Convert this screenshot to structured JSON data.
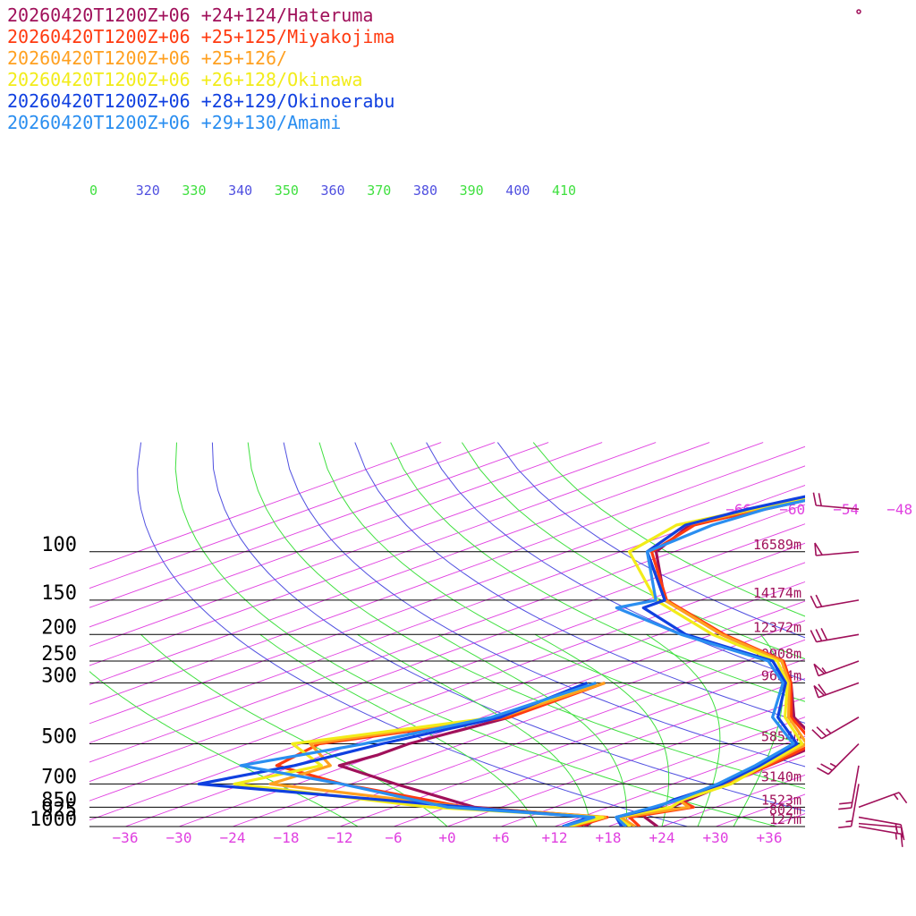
{
  "chart_data": {
    "type": "line",
    "diagram": "skew-t log-p",
    "legend_placement": "top-left",
    "series": [
      {
        "name": "20260420T1200Z+06 +24+124/Hateruma",
        "color": "#a0105a",
        "temperature": [
          [
            1000,
            23.5
          ],
          [
            925,
            19.2
          ],
          [
            900,
            18
          ],
          [
            850,
            19
          ],
          [
            800,
            18.7
          ],
          [
            700,
            18
          ],
          [
            600,
            17
          ],
          [
            500,
            16
          ],
          [
            400,
            4.8
          ],
          [
            300,
            -6.2
          ],
          [
            250,
            -14
          ],
          [
            200,
            -29
          ],
          [
            150,
            -46
          ],
          [
            100,
            -62
          ],
          [
            80,
            -66.5
          ],
          [
            70,
            -63
          ],
          [
            50,
            -55
          ]
        ],
        "dewpoint": [
          [
            1000,
            15.4
          ],
          [
            925,
            14
          ],
          [
            850,
            -3
          ],
          [
            700,
            -19
          ],
          [
            600,
            -31
          ],
          [
            550,
            -30
          ],
          [
            500,
            -30
          ],
          [
            400,
            -27
          ],
          [
            300,
            -28
          ]
        ]
      },
      {
        "name": "20260420T1200Z+06 +25+125/Miyakojima",
        "color": "#ff3a10",
        "temperature": [
          [
            1000,
            21.5
          ],
          [
            925,
            17.5
          ],
          [
            850,
            21.5
          ],
          [
            800,
            17.6
          ],
          [
            700,
            18
          ],
          [
            600,
            17
          ],
          [
            500,
            15.3
          ],
          [
            400,
            4.5
          ],
          [
            300,
            -6.2
          ],
          [
            250,
            -13.8
          ],
          [
            200,
            -28.7
          ],
          [
            150,
            -45.8
          ],
          [
            100,
            -62.5
          ],
          [
            80,
            -66
          ],
          [
            70,
            -63.5
          ],
          [
            50,
            -55.5
          ]
        ],
        "dewpoint": [
          [
            1000,
            14.4
          ],
          [
            925,
            15
          ],
          [
            850,
            -4
          ],
          [
            700,
            -25
          ],
          [
            600,
            -38
          ],
          [
            500,
            -40
          ],
          [
            400,
            -27
          ],
          [
            300,
            -27
          ]
        ]
      },
      {
        "name": "20260420T1200Z+06 +25+126/",
        "color": "#ffa020",
        "temperature": [
          [
            1000,
            21
          ],
          [
            925,
            16.5
          ],
          [
            850,
            21
          ],
          [
            800,
            17.6
          ],
          [
            700,
            17.5
          ],
          [
            600,
            16.6
          ],
          [
            500,
            14.5
          ],
          [
            400,
            4.2
          ],
          [
            300,
            -6.4
          ],
          [
            250,
            -14
          ],
          [
            200,
            -29
          ],
          [
            150,
            -46
          ],
          [
            100,
            -63
          ],
          [
            80,
            -67
          ],
          [
            70,
            -64
          ],
          [
            50,
            -56
          ]
        ],
        "dewpoint": [
          [
            1000,
            13.7
          ],
          [
            925,
            14.8
          ],
          [
            850,
            -4
          ],
          [
            700,
            -33
          ],
          [
            600,
            -32
          ],
          [
            500,
            -41
          ],
          [
            400,
            -28
          ],
          [
            300,
            -27
          ]
        ]
      },
      {
        "name": "20260420T1200Z+06 +26+128/Okinawa",
        "color": "#f2ec1a",
        "temperature": [
          [
            1000,
            20.5
          ],
          [
            925,
            16
          ],
          [
            850,
            19
          ],
          [
            800,
            18
          ],
          [
            700,
            18.5
          ],
          [
            600,
            16.4
          ],
          [
            500,
            14
          ],
          [
            400,
            3.8
          ],
          [
            300,
            -6.6
          ],
          [
            250,
            -14.5
          ],
          [
            200,
            -30
          ],
          [
            150,
            -47
          ],
          [
            100,
            -65
          ],
          [
            80,
            -68
          ],
          [
            70,
            -64.5
          ],
          [
            50,
            -56.5
          ]
        ],
        "dewpoint": [
          [
            1000,
            13.5
          ],
          [
            925,
            14.5
          ],
          [
            850,
            -8
          ],
          [
            700,
            -37
          ],
          [
            600,
            -33
          ],
          [
            500,
            -43
          ],
          [
            400,
            -28.5
          ],
          [
            300,
            -28
          ]
        ]
      },
      {
        "name": "20260420T1200Z+06 +28+129/Okinoerabu",
        "color": "#1040e0",
        "temperature": [
          [
            1000,
            19.5
          ],
          [
            925,
            16
          ],
          [
            850,
            17.5
          ],
          [
            800,
            17
          ],
          [
            700,
            17.5
          ],
          [
            600,
            16
          ],
          [
            500,
            13.4
          ],
          [
            400,
            3
          ],
          [
            300,
            -6.8
          ],
          [
            250,
            -15
          ],
          [
            200,
            -33
          ],
          [
            160,
            -46
          ],
          [
            150,
            -46
          ],
          [
            100,
            -63
          ],
          [
            80,
            -67
          ],
          [
            70,
            -65
          ],
          [
            50,
            -57
          ]
        ],
        "dewpoint": [
          [
            1000,
            12.9
          ],
          [
            925,
            13
          ],
          [
            850,
            -4
          ],
          [
            700,
            -41
          ],
          [
            600,
            -36
          ],
          [
            500,
            -33
          ],
          [
            400,
            -28
          ],
          [
            300,
            -29
          ]
        ]
      },
      {
        "name": "20260420T1200Z+06 +29+130/Amami",
        "color": "#2a8ef0",
        "temperature": [
          [
            1000,
            20
          ],
          [
            925,
            16
          ],
          [
            850,
            17
          ],
          [
            800,
            17.5
          ],
          [
            700,
            17
          ],
          [
            600,
            15.5
          ],
          [
            500,
            13
          ],
          [
            400,
            2.4
          ],
          [
            300,
            -7.1
          ],
          [
            250,
            -15.5
          ],
          [
            200,
            -33.5
          ],
          [
            160,
            -49
          ],
          [
            150,
            -47
          ],
          [
            100,
            -63
          ],
          [
            80,
            -64
          ],
          [
            70,
            -63
          ],
          [
            50,
            -55
          ]
        ],
        "dewpoint": [
          [
            1000,
            13
          ],
          [
            925,
            13.5
          ],
          [
            850,
            -6
          ],
          [
            700,
            -25
          ],
          [
            600,
            -42
          ],
          [
            500,
            -35
          ],
          [
            400,
            -29
          ],
          [
            300,
            -28
          ]
        ]
      }
    ],
    "pressure_levels": [
      100,
      150,
      200,
      250,
      300,
      500,
      700,
      850,
      925,
      1000
    ],
    "pressure_labels": [
      "100",
      "150",
      "200",
      "250",
      "300",
      "500",
      "700",
      "850",
      "925",
      "1000"
    ],
    "height_labels": [
      {
        "p": 100,
        "text": "16589m"
      },
      {
        "p": 150,
        "text": "14174m"
      },
      {
        "p": 200,
        "text": "12372m"
      },
      {
        "p": 250,
        "text": "10908m"
      },
      {
        "p": 300,
        "text": "9654m"
      },
      {
        "p": 500,
        "text": "5854m"
      },
      {
        "p": 700,
        "text": "3140m"
      },
      {
        "p": 850,
        "text": "1523m"
      },
      {
        "p": 925,
        "text": "802m"
      },
      {
        "p": 1000,
        "text": "127m"
      }
    ],
    "x_ticks": [
      -36,
      -30,
      -24,
      -18,
      -12,
      -6,
      0,
      6,
      12,
      18,
      24,
      30,
      36
    ],
    "x_tick_labels": [
      "−36",
      "−30",
      "−24",
      "−18",
      "−12",
      "−6",
      "+0",
      "+6",
      "+12",
      "+18",
      "+24",
      "+30",
      "+36"
    ],
    "upper_isotherm_labels": [
      {
        "t": -66,
        "text": "−66"
      },
      {
        "t": -60,
        "text": "−60"
      },
      {
        "t": -54,
        "text": "−54"
      },
      {
        "t": -48,
        "text": "−48"
      }
    ],
    "theta_labels": [
      "0",
      "320",
      "330",
      "340",
      "350",
      "360",
      "370",
      "380",
      "390",
      "400",
      "410"
    ],
    "theta_lines": [
      300,
      310,
      320,
      330,
      340,
      350,
      360,
      370,
      380,
      390,
      400,
      410
    ],
    "moist_adiabats_surface_temp": [
      -10,
      0,
      10,
      16,
      20,
      24,
      28,
      32
    ],
    "xlim": [
      -40,
      40
    ],
    "ylim_hpa": [
      1000,
      100
    ],
    "colors": {
      "isotherm": "#e040e0",
      "dry_adiabat_blue": "#5050e0",
      "dry_adiabat_green": "#40e040",
      "moist_adiabat": "#40e040",
      "isobar": "#000000",
      "wind_barb": "#a0105a"
    },
    "wind_barbs": [
      {
        "p": 1000,
        "dir": 100,
        "spd": 15
      },
      {
        "p": 975,
        "dir": 95,
        "spd": 15
      },
      {
        "p": 925,
        "dir": 100,
        "spd": 15
      },
      {
        "p": 850,
        "dir": 70,
        "spd": 15
      },
      {
        "p": 700,
        "dir": 190,
        "spd": 15
      },
      {
        "p": 600,
        "dir": 190,
        "spd": 20
      },
      {
        "p": 500,
        "dir": 225,
        "spd": 25
      },
      {
        "p": 400,
        "dir": 240,
        "spd": 25
      },
      {
        "p": 300,
        "dir": 250,
        "spd": 60
      },
      {
        "p": 250,
        "dir": 250,
        "spd": 55
      },
      {
        "p": 200,
        "dir": 260,
        "spd": 30
      },
      {
        "p": 150,
        "dir": 260,
        "spd": 20
      },
      {
        "p": 100,
        "dir": 265,
        "spd": 50
      },
      {
        "p": 70,
        "dir": 275,
        "spd": 20
      }
    ]
  }
}
